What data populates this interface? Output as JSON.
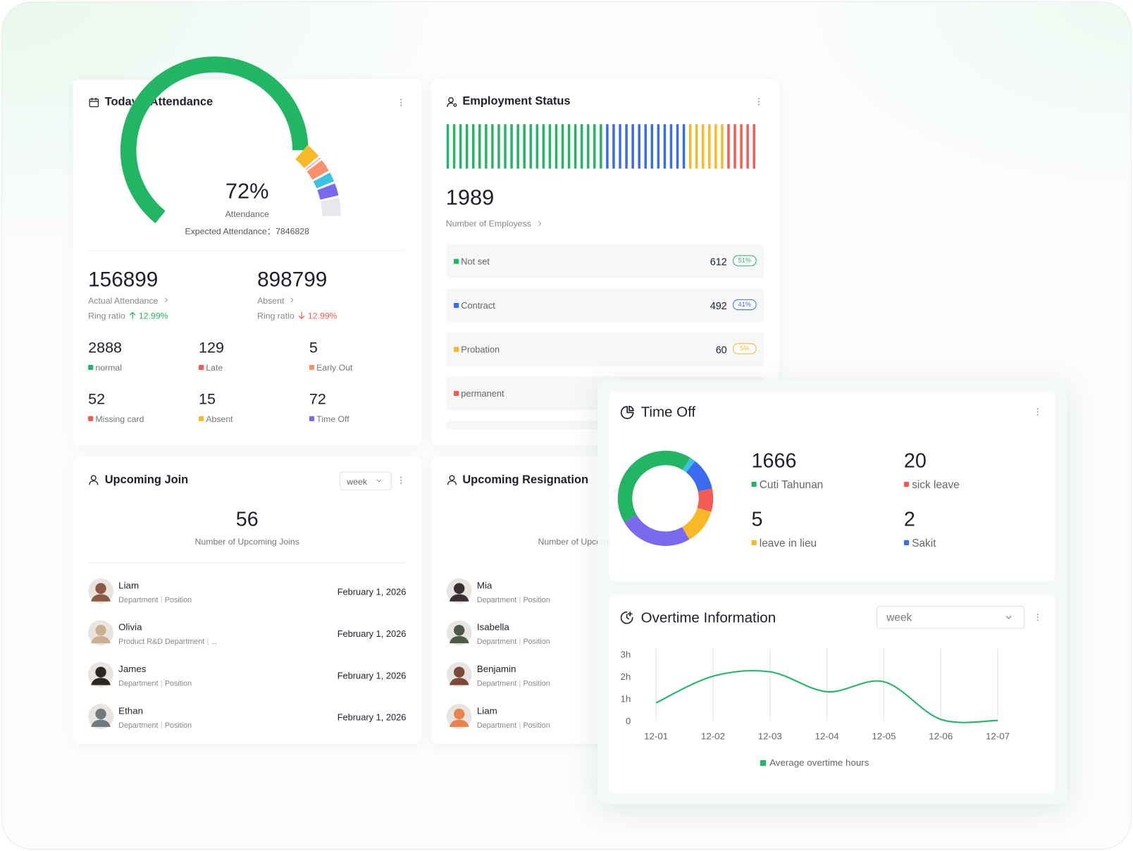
{
  "attendance": {
    "title": "Today's Attendance",
    "gauge": {
      "type": "gauge",
      "values": [
        72,
        6,
        1,
        5,
        4,
        5,
        7
      ],
      "colors": [
        "#22b563",
        "#f7b928",
        "#f25c54",
        "#f8906c",
        "#3cc3e2",
        "#7a68ef",
        "#e6e8ee"
      ],
      "center_label": "72%",
      "label": "Attendance"
    },
    "expected": {
      "label": "Expected Attendance：",
      "value": 7846828
    },
    "summary": [
      {
        "value": 156899,
        "label": "Actual Attendance",
        "ring_label": "Ring ratio",
        "ring": "12.99%",
        "trend": "up"
      },
      {
        "value": 898799,
        "label": "Absent",
        "ring_label": "Ring ratio",
        "ring": "12.99%",
        "trend": "down"
      }
    ],
    "stats": [
      {
        "value": 2888,
        "label": "normal",
        "color": "#22b563"
      },
      {
        "value": 129,
        "label": "Late",
        "color": "#f25c54"
      },
      {
        "value": 5,
        "label": "Early Out",
        "color": "#f8906c"
      },
      {
        "value": 52,
        "label": "Missing card",
        "color": "#f25c54"
      },
      {
        "value": 15,
        "label": "Absent",
        "color": "#f7b928"
      },
      {
        "value": 72,
        "label": "Time Off",
        "color": "#7a68ef"
      }
    ]
  },
  "employment": {
    "title": "Employment Status",
    "total": 1989,
    "total_label": "Number of Employess",
    "items": [
      {
        "name": "Not set",
        "color": "#22b563",
        "count": 612,
        "share": "51%"
      },
      {
        "name": "Contract",
        "color": "#3b6cf0",
        "count": 492,
        "share": "41%"
      },
      {
        "name": "Probation",
        "color": "#f7b928",
        "count": 60,
        "share": "5%"
      },
      {
        "name": "permanent",
        "color": "#f25c54"
      }
    ]
  },
  "upcoming_join": {
    "title": "Upcoming Join",
    "period": "week",
    "count": 56,
    "count_label": "Number of Upcoming Joins",
    "people": [
      {
        "name": "Liam",
        "department": "Department",
        "position": "Position",
        "date": "February 1, 2026",
        "avatar_color": "#8a5a44"
      },
      {
        "name": "Olivia",
        "department": "Product R&D Department",
        "position": "...",
        "date": "February 1, 2026",
        "avatar_color": "#c9b08f"
      },
      {
        "name": "James",
        "department": "Department",
        "position": "Position",
        "date": "February 1, 2026",
        "avatar_color": "#2b2624"
      },
      {
        "name": "Ethan",
        "department": "Department",
        "position": "Position",
        "date": "February 1, 2026",
        "avatar_color": "#6f7a80"
      }
    ]
  },
  "upcoming_resignation": {
    "title": "Upcoming Resignation",
    "count_label": "Number of Upcoming Resignations",
    "people": [
      {
        "name": "Mia",
        "department": "Department",
        "position": "Position",
        "avatar_color": "#3a2f35"
      },
      {
        "name": "Isabella",
        "department": "Department",
        "position": "Position",
        "avatar_color": "#4d5a48"
      },
      {
        "name": "Benjamin",
        "department": "Department",
        "position": "Position",
        "avatar_color": "#7a4a36"
      },
      {
        "name": "Liam",
        "department": "Department",
        "position": "Position",
        "avatar_color": "#e8834f"
      }
    ]
  },
  "time_off": {
    "title": "Time Off",
    "donut": {
      "type": "pie",
      "values": [
        42,
        2,
        11,
        8,
        12,
        25
      ],
      "colors": [
        "#22b563",
        "#3cc3e2",
        "#3b6cf0",
        "#f25c54",
        "#f7b928",
        "#7a68ef"
      ]
    },
    "items": [
      {
        "value": 1666,
        "name": "Cuti Tahunan",
        "color": "#22b563"
      },
      {
        "value": 20,
        "name": "sick leave",
        "color": "#f25c54"
      },
      {
        "value": 5,
        "name": "leave in lieu",
        "color": "#f7b928"
      },
      {
        "value": 2,
        "name": "Sakit",
        "color": "#3b6cf0"
      }
    ]
  },
  "overtime": {
    "title": "Overtime Information",
    "period": "week",
    "chart_data": {
      "type": "line",
      "categories": [
        "12-01",
        "12-02",
        "12-03",
        "12-04",
        "12-05",
        "12-06",
        "12-07"
      ],
      "series": [
        {
          "name": "Average overtime hours",
          "color": "#22b563",
          "values": [
            0.8,
            2.0,
            2.2,
            1.3,
            1.75,
            0.05,
            0
          ]
        }
      ],
      "ylim": [
        0,
        3
      ],
      "yticks": [
        0,
        {
          "value": 1,
          "label": "1h"
        },
        {
          "value": 2,
          "label": "2h"
        },
        {
          "value": 3,
          "label": "3h"
        }
      ],
      "grid": "vertical",
      "legend": "bottom"
    }
  }
}
